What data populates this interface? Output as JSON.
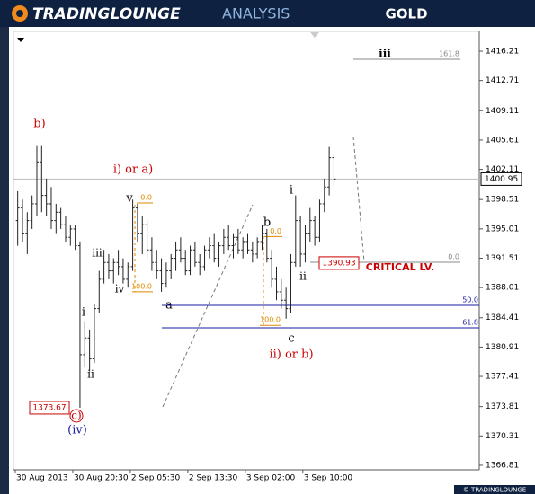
{
  "header": {
    "brand": "TRADINGLOUNGE",
    "section": "ANALYSIS",
    "symbol": "GOLD"
  },
  "footer": "© TRADINGLOUNGE",
  "chart_data": {
    "type": "ohlc",
    "color": "#222222",
    "categories": [
      "30 Aug 2013",
      null,
      null,
      null,
      null,
      null,
      null,
      null,
      null,
      null,
      null,
      null,
      "30 Aug 20:30",
      null,
      null,
      null,
      null,
      null,
      null,
      null,
      null,
      null,
      null,
      null,
      "2 Sep 05:30",
      null,
      null,
      null,
      null,
      null,
      null,
      null,
      null,
      null,
      null,
      null,
      "2 Sep 13:30",
      null,
      null,
      null,
      null,
      null,
      null,
      null,
      null,
      null,
      null,
      null,
      "3 Sep 02:00",
      null,
      null,
      null,
      null,
      null,
      null,
      null,
      null,
      null,
      null,
      null,
      "3 Sep 10:00",
      null,
      null,
      null,
      null,
      null,
      null
    ],
    "open": [
      1396.0,
      1397.5,
      1394.5,
      1396.0,
      1398.0,
      1403.0,
      1399.0,
      1398.0,
      1396.0,
      1397.0,
      1395.5,
      1394.0,
      1395.0,
      1393.0,
      1380.0,
      1382.0,
      1379.5,
      1385.5,
      1389.0,
      1391.0,
      1390.0,
      1391.0,
      1390.5,
      1389.0,
      1390.5,
      1397.5,
      1394.5,
      1395.5,
      1392.5,
      1391.0,
      1390.0,
      1388.5,
      1390.0,
      1391.5,
      1392.5,
      1391.5,
      1390.0,
      1392.5,
      1391.0,
      1390.5,
      1392.5,
      1393.0,
      1391.5,
      1393.0,
      1394.0,
      1393.0,
      1394.0,
      1392.5,
      1393.5,
      1392.5,
      1392.0,
      1393.5,
      1394.5,
      1391.5,
      1389.0,
      1387.5,
      1386.5,
      1385.5,
      1391.0,
      1396.0,
      1392.0,
      1394.5,
      1396.0,
      1394.0,
      1398.0,
      1400.0,
      1403.5
    ],
    "high": [
      1399.5,
      1398.5,
      1397.0,
      1399.0,
      1405.0,
      1405.0,
      1401.0,
      1400.0,
      1398.0,
      1397.5,
      1396.5,
      1395.5,
      1395.5,
      1393.5,
      1384.0,
      1383.0,
      1386.0,
      1390.0,
      1392.5,
      1392.0,
      1391.5,
      1392.5,
      1391.5,
      1391.0,
      1398.5,
      1398.0,
      1396.5,
      1396.0,
      1394.0,
      1392.5,
      1391.5,
      1391.0,
      1392.0,
      1393.5,
      1394.0,
      1392.5,
      1393.0,
      1393.5,
      1392.0,
      1393.0,
      1394.0,
      1394.5,
      1393.5,
      1395.0,
      1395.5,
      1394.5,
      1395.0,
      1394.0,
      1394.5,
      1393.5,
      1394.0,
      1395.5,
      1395.0,
      1392.5,
      1390.5,
      1389.0,
      1388.0,
      1392.0,
      1399.0,
      1396.5,
      1395.5,
      1397.5,
      1396.5,
      1398.5,
      1401.0,
      1404.8,
      1404.0
    ],
    "low": [
      1393.0,
      1393.5,
      1392.0,
      1395.0,
      1396.5,
      1397.0,
      1396.5,
      1395.0,
      1394.5,
      1395.0,
      1393.5,
      1393.0,
      1392.5,
      1373.67,
      1378.5,
      1378.0,
      1379.0,
      1385.0,
      1388.5,
      1389.0,
      1388.5,
      1389.5,
      1388.5,
      1388.0,
      1390.0,
      1393.5,
      1392.0,
      1391.5,
      1390.0,
      1389.0,
      1387.5,
      1388.0,
      1389.0,
      1390.0,
      1391.0,
      1389.5,
      1389.5,
      1390.5,
      1389.5,
      1390.0,
      1391.5,
      1391.0,
      1390.5,
      1392.0,
      1392.5,
      1391.5,
      1392.0,
      1391.5,
      1392.0,
      1391.0,
      1391.5,
      1392.5,
      1391.0,
      1388.0,
      1386.5,
      1385.5,
      1384.3,
      1385.0,
      1390.5,
      1390.5,
      1391.0,
      1393.5,
      1393.0,
      1393.5,
      1397.0,
      1399.0,
      1400.0
    ],
    "close": [
      1397.5,
      1394.5,
      1396.0,
      1398.0,
      1403.0,
      1399.0,
      1398.0,
      1396.0,
      1397.0,
      1395.5,
      1394.0,
      1395.0,
      1393.0,
      1380.0,
      1382.0,
      1379.5,
      1385.5,
      1389.0,
      1391.0,
      1390.0,
      1391.0,
      1390.5,
      1389.0,
      1390.5,
      1397.5,
      1394.5,
      1395.5,
      1392.5,
      1391.0,
      1390.0,
      1388.5,
      1390.0,
      1391.5,
      1392.5,
      1391.5,
      1390.0,
      1392.5,
      1391.0,
      1390.5,
      1392.5,
      1393.0,
      1391.5,
      1393.0,
      1394.0,
      1393.0,
      1394.0,
      1392.5,
      1393.5,
      1392.5,
      1392.0,
      1393.5,
      1394.5,
      1391.5,
      1389.0,
      1387.5,
      1386.5,
      1385.5,
      1391.0,
      1396.0,
      1392.0,
      1394.5,
      1396.0,
      1394.0,
      1398.0,
      1400.0,
      1403.5,
      1400.95
    ],
    "ylim": [
      1366.27,
      1418.57
    ],
    "yticks": [
      1416.21,
      1412.71,
      1409.11,
      1405.61,
      1402.11,
      1398.51,
      1395.01,
      1391.51,
      1388.01,
      1384.41,
      1380.91,
      1377.41,
      1373.81,
      1370.31,
      1366.81
    ],
    "last_price": 1400.95,
    "price_boxes": [
      1390.93,
      1373.67
    ],
    "fib_levels": [
      {
        "value": 1415.25,
        "label": "161.8",
        "color": "#888888"
      },
      {
        "value": 1391.03,
        "label": "0.0",
        "color": "#888888"
      },
      {
        "value": 1385.88,
        "label": "50.0",
        "color": "#1a1aa0"
      },
      {
        "value": 1383.2,
        "label": "61.8",
        "color": "#1a1aa0"
      },
      {
        "value": 1398.1,
        "label": "0.0",
        "color": "#e08a00"
      },
      {
        "value": 1387.5,
        "label": "100.0",
        "color": "#e08a00"
      },
      {
        "value": 1394.1,
        "label": "0.0",
        "color": "#e08a00"
      },
      {
        "value": 1383.5,
        "label": "100.0",
        "color": "#e08a00"
      }
    ],
    "annotations": [
      "b)",
      "i) or a)",
      "v",
      "iii",
      "iv",
      "i",
      "ii",
      "c)",
      "(iv)",
      "a",
      "b",
      "c",
      "ii) or b)",
      "i",
      "ii",
      "iii",
      "CRITICAL LV."
    ]
  }
}
